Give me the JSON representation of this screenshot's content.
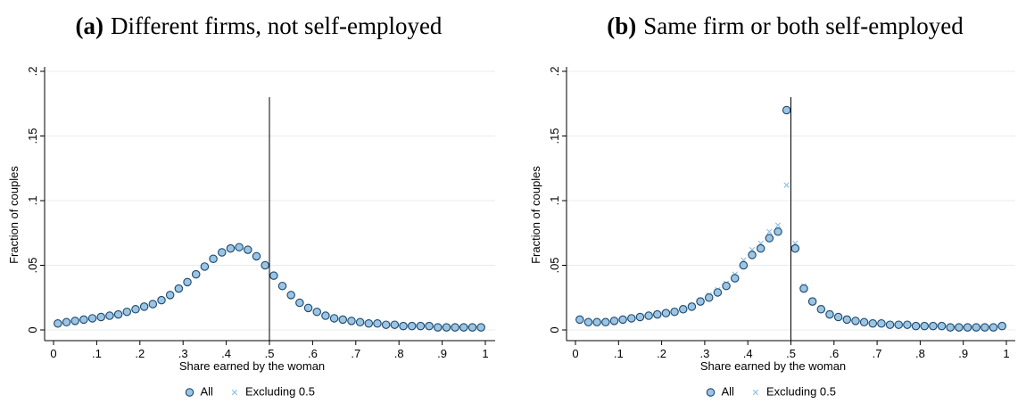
{
  "chart_data": [
    {
      "type": "scatter",
      "label": "(a)",
      "title": "Different firms, not self-employed",
      "xlabel": "Share earned by the woman",
      "ylabel": "Fraction of couples",
      "xlim": [
        0,
        1
      ],
      "ylim": [
        0,
        0.2
      ],
      "xticks": [
        0,
        {
          "value": 0.1,
          "label": ".1"
        },
        {
          "value": 0.2,
          "label": ".2"
        },
        {
          "value": 0.3,
          "label": ".3"
        },
        {
          "value": 0.4,
          "label": ".4"
        },
        {
          "value": 0.5,
          "label": ".5"
        },
        {
          "value": 0.6,
          "label": ".6"
        },
        {
          "value": 0.7,
          "label": ".7"
        },
        {
          "value": 0.8,
          "label": ".8"
        },
        {
          "value": 0.9,
          "label": ".9"
        },
        1
      ],
      "yticks": [
        0,
        {
          "value": 0.05,
          "label": ".05"
        },
        {
          "value": 0.1,
          "label": ".1"
        },
        {
          "value": 0.15,
          "label": ".15"
        },
        {
          "value": 0.2,
          "label": ".2"
        }
      ],
      "grid": true,
      "vline": {
        "x": 0.5,
        "ymax": 0.18
      },
      "x": [
        0.01,
        0.03,
        0.05,
        0.07,
        0.09,
        0.11,
        0.13,
        0.15,
        0.17,
        0.19,
        0.21,
        0.23,
        0.25,
        0.27,
        0.29,
        0.31,
        0.33,
        0.35,
        0.37,
        0.39,
        0.41,
        0.43,
        0.45,
        0.47,
        0.49,
        0.51,
        0.53,
        0.55,
        0.57,
        0.59,
        0.61,
        0.63,
        0.65,
        0.67,
        0.69,
        0.71,
        0.73,
        0.75,
        0.77,
        0.79,
        0.81,
        0.83,
        0.85,
        0.87,
        0.89,
        0.91,
        0.93,
        0.95,
        0.97,
        0.99
      ],
      "series": [
        {
          "name": "Excluding 0.5",
          "marker": "x",
          "color": "#8fc3e6",
          "values": [
            0.005,
            0.006,
            0.007,
            0.008,
            0.009,
            0.01,
            0.011,
            0.012,
            0.014,
            0.016,
            0.018,
            0.02,
            0.023,
            0.027,
            0.032,
            0.037,
            0.043,
            0.049,
            0.055,
            0.06,
            0.063,
            0.064,
            0.062,
            0.057,
            0.05,
            0.042,
            0.034,
            0.027,
            0.021,
            0.017,
            0.014,
            0.011,
            0.009,
            0.008,
            0.007,
            0.006,
            0.005,
            0.005,
            0.004,
            0.004,
            0.003,
            0.003,
            0.003,
            0.003,
            0.002,
            0.002,
            0.002,
            0.002,
            0.002,
            0.002
          ]
        },
        {
          "name": "All",
          "marker": "circle",
          "color": "#1a476f",
          "fill": "#9cc5e3",
          "values": [
            0.005,
            0.006,
            0.007,
            0.008,
            0.009,
            0.01,
            0.011,
            0.012,
            0.014,
            0.016,
            0.018,
            0.02,
            0.023,
            0.027,
            0.032,
            0.037,
            0.043,
            0.049,
            0.055,
            0.06,
            0.063,
            0.064,
            0.062,
            0.057,
            0.05,
            0.042,
            0.034,
            0.027,
            0.021,
            0.017,
            0.014,
            0.011,
            0.009,
            0.008,
            0.007,
            0.006,
            0.005,
            0.005,
            0.004,
            0.004,
            0.003,
            0.003,
            0.003,
            0.003,
            0.002,
            0.002,
            0.002,
            0.002,
            0.002,
            0.002
          ]
        }
      ]
    },
    {
      "type": "scatter",
      "label": "(b)",
      "title": "Same firm or both self-employed",
      "xlabel": "Share earned by the woman",
      "ylabel": "Fraction of couples",
      "xlim": [
        0,
        1
      ],
      "ylim": [
        0,
        0.2
      ],
      "xticks": [
        0,
        {
          "value": 0.1,
          "label": ".1"
        },
        {
          "value": 0.2,
          "label": ".2"
        },
        {
          "value": 0.3,
          "label": ".3"
        },
        {
          "value": 0.4,
          "label": ".4"
        },
        {
          "value": 0.5,
          "label": ".5"
        },
        {
          "value": 0.6,
          "label": ".6"
        },
        {
          "value": 0.7,
          "label": ".7"
        },
        {
          "value": 0.8,
          "label": ".8"
        },
        {
          "value": 0.9,
          "label": ".9"
        },
        1
      ],
      "yticks": [
        0,
        {
          "value": 0.05,
          "label": ".05"
        },
        {
          "value": 0.1,
          "label": ".1"
        },
        {
          "value": 0.15,
          "label": ".15"
        },
        {
          "value": 0.2,
          "label": ".2"
        }
      ],
      "grid": true,
      "vline": {
        "x": 0.5,
        "ymax": 0.18
      },
      "x": [
        0.01,
        0.03,
        0.05,
        0.07,
        0.09,
        0.11,
        0.13,
        0.15,
        0.17,
        0.19,
        0.21,
        0.23,
        0.25,
        0.27,
        0.29,
        0.31,
        0.33,
        0.35,
        0.37,
        0.39,
        0.41,
        0.43,
        0.45,
        0.47,
        0.49,
        0.51,
        0.53,
        0.55,
        0.57,
        0.59,
        0.61,
        0.63,
        0.65,
        0.67,
        0.69,
        0.71,
        0.73,
        0.75,
        0.77,
        0.79,
        0.81,
        0.83,
        0.85,
        0.87,
        0.89,
        0.91,
        0.93,
        0.95,
        0.97,
        0.99
      ],
      "series": [
        {
          "name": "Excluding 0.5",
          "marker": "x",
          "color": "#8fc3e6",
          "values": [
            0.008,
            0.006,
            0.006,
            0.007,
            0.007,
            0.008,
            0.009,
            0.01,
            0.011,
            0.012,
            0.013,
            0.015,
            0.017,
            0.019,
            0.023,
            0.027,
            0.031,
            0.036,
            0.043,
            0.054,
            0.062,
            0.067,
            0.076,
            0.081,
            0.112,
            0.067,
            0.034,
            0.023,
            0.017,
            0.013,
            0.01,
            0.009,
            0.007,
            0.006,
            0.006,
            0.005,
            0.004,
            0.004,
            0.004,
            0.003,
            0.003,
            0.003,
            0.003,
            0.002,
            0.002,
            0.002,
            0.002,
            0.002,
            0.002,
            0.003
          ]
        },
        {
          "name": "All",
          "marker": "circle",
          "color": "#1a476f",
          "fill": "#9cc5e3",
          "values": [
            0.008,
            0.006,
            0.006,
            0.006,
            0.007,
            0.008,
            0.009,
            0.01,
            0.011,
            0.012,
            0.013,
            0.014,
            0.016,
            0.018,
            0.022,
            0.025,
            0.029,
            0.034,
            0.04,
            0.05,
            0.058,
            0.063,
            0.071,
            0.076,
            0.17,
            0.063,
            0.032,
            0.022,
            0.016,
            0.012,
            0.01,
            0.008,
            0.007,
            0.006,
            0.005,
            0.005,
            0.004,
            0.004,
            0.004,
            0.003,
            0.003,
            0.003,
            0.003,
            0.002,
            0.002,
            0.002,
            0.002,
            0.002,
            0.002,
            0.003
          ]
        }
      ]
    }
  ]
}
